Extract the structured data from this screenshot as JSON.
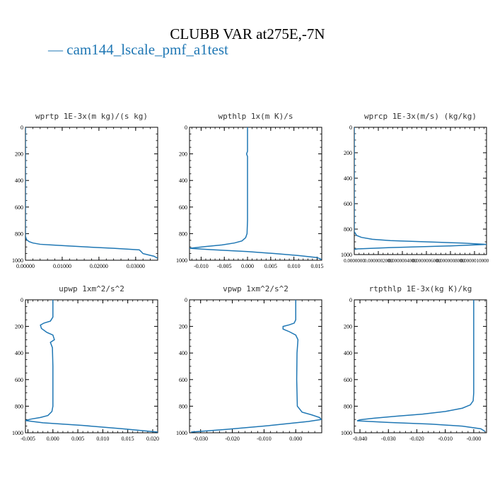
{
  "title": "CLUBB VAR at275E,-7N",
  "legend_label": "cam144_lscale_pmf_a1test",
  "colors": {
    "line": "#1f77b4",
    "axis": "#000000"
  },
  "chart_data": [
    {
      "type": "line",
      "title": "wprtp  1E-3x(m kg)/(s kg)",
      "xlim": [
        0.0,
        0.036
      ],
      "ylim": [
        1000,
        0
      ],
      "xticks": [
        0.0,
        0.01,
        0.02,
        0.03
      ],
      "xtick_labels": [
        "0.00000",
        "0.01000",
        "0.02000",
        "0.03000"
      ],
      "yticks": [
        0,
        200,
        400,
        600,
        800,
        1000
      ],
      "ytick_labels": [
        "0",
        "200",
        "400",
        "600",
        "800",
        "1000"
      ],
      "series": [
        {
          "name": "cam144_lscale_pmf_a1test",
          "x": [
            0.0,
            0.0,
            0.0,
            0.0003,
            0.001,
            0.002,
            0.004,
            0.007,
            0.012,
            0.018,
            0.024,
            0.028,
            0.031,
            0.0315,
            0.032,
            0.0335,
            0.035,
            0.036
          ],
          "y": [
            0,
            780,
            820,
            845,
            860,
            870,
            880,
            885,
            893,
            902,
            910,
            917,
            922,
            935,
            950,
            960,
            970,
            985
          ]
        }
      ]
    },
    {
      "type": "line",
      "title": "wpthlp  1x(m K)/s",
      "xlim": [
        -0.0125,
        0.016
      ],
      "ylim": [
        1000,
        0
      ],
      "xticks": [
        -0.01,
        -0.005,
        0.0,
        0.005,
        0.01,
        0.015
      ],
      "xtick_labels": [
        "-0.010",
        "-0.005",
        "0.000",
        "0.005",
        "0.010",
        "0.015"
      ],
      "yticks": [
        0,
        200,
        400,
        600,
        800,
        1000
      ],
      "ytick_labels": [
        "0",
        "200",
        "400",
        "600",
        "800",
        "1000"
      ],
      "series": [
        {
          "name": "cam144_lscale_pmf_a1test",
          "x": [
            0.0,
            0.0,
            -0.0002,
            0.0,
            0.0,
            0.0,
            -0.0001,
            -0.0004,
            -0.0012,
            -0.0028,
            -0.0055,
            -0.009,
            -0.0125,
            -0.008,
            0.0,
            0.006,
            0.011,
            0.015,
            0.016
          ],
          "y": [
            0,
            180,
            200,
            220,
            400,
            700,
            800,
            830,
            855,
            870,
            885,
            897,
            910,
            920,
            935,
            950,
            965,
            980,
            995
          ]
        }
      ]
    },
    {
      "type": "line",
      "title": "wprcp  1E-3x(m/s) (kg/kg)",
      "xlim": [
        0.0,
        1.1e-06
      ],
      "ylim": [
        1000,
        0
      ],
      "xticks": [
        0.0,
        2e-07,
        4e-07,
        6e-07,
        8e-07,
        1e-06
      ],
      "xtick_labels": [
        "0.0000000",
        "0.0000002000",
        "0.0000004000",
        "0.0000006000",
        "0.0000008000",
        "0.0000010000"
      ],
      "yticks": [
        0,
        200,
        400,
        600,
        800,
        1000
      ],
      "ytick_labels": [
        "0",
        "200",
        "400",
        "600",
        "800",
        "1000"
      ],
      "series": [
        {
          "name": "cam144_lscale_pmf_a1test",
          "x": [
            0.0,
            0.0,
            0.0,
            2e-08,
            6e-08,
            1.5e-07,
            3e-07,
            6e-07,
            9e-07,
            1.1e-06,
            8e-07,
            3e-07,
            3e-08,
            0.0
          ],
          "y": [
            0,
            750,
            820,
            850,
            865,
            880,
            890,
            900,
            910,
            920,
            932,
            945,
            955,
            960
          ]
        }
      ]
    },
    {
      "type": "line",
      "title": "upwp  1xm^2/s^2",
      "xlim": [
        -0.0055,
        0.021
      ],
      "ylim": [
        1000,
        0
      ],
      "xticks": [
        -0.005,
        0.0,
        0.005,
        0.01,
        0.015,
        0.02
      ],
      "xtick_labels": [
        "-0.005",
        "0.000",
        "0.005",
        "0.010",
        "0.015",
        "0.020"
      ],
      "yticks": [
        0,
        200,
        400,
        600,
        800,
        1000
      ],
      "ytick_labels": [
        "0",
        "200",
        "400",
        "600",
        "800",
        "1000"
      ],
      "series": [
        {
          "name": "cam144_lscale_pmf_a1test",
          "x": [
            0.0,
            0.0,
            -0.0005,
            -0.0018,
            -0.0025,
            -0.0023,
            -0.0012,
            0.0,
            0.0003,
            -0.0005,
            -0.0001,
            0.0,
            0.0,
            -0.0002,
            -0.001,
            -0.0025,
            -0.0045,
            -0.0055,
            -0.002,
            0.006,
            0.014,
            0.021
          ],
          "y": [
            0,
            130,
            160,
            175,
            190,
            215,
            245,
            265,
            300,
            320,
            360,
            500,
            800,
            840,
            870,
            885,
            898,
            908,
            925,
            945,
            970,
            995
          ]
        }
      ]
    },
    {
      "type": "line",
      "title": "vpwp  1xm^2/s^2",
      "xlim": [
        -0.0335,
        0.0082
      ],
      "ylim": [
        1000,
        0
      ],
      "xticks": [
        -0.03,
        -0.02,
        -0.01,
        0.0
      ],
      "xtick_labels": [
        "-0.030",
        "-0.020",
        "-0.010",
        "0.000"
      ],
      "yticks": [
        0,
        200,
        400,
        600,
        800,
        1000
      ],
      "ytick_labels": [
        "0",
        "200",
        "400",
        "600",
        "800",
        "1000"
      ],
      "series": [
        {
          "name": "cam144_lscale_pmf_a1test",
          "x": [
            0.0,
            0.0,
            -0.0005,
            -0.002,
            -0.004,
            -0.004,
            -0.002,
            0.0,
            0.0007,
            0.0004,
            0.0003,
            0.0005,
            0.002,
            0.005,
            0.0075,
            0.008,
            0.004,
            -0.008,
            -0.022,
            -0.033
          ],
          "y": [
            0,
            150,
            175,
            188,
            200,
            220,
            240,
            265,
            300,
            400,
            600,
            800,
            845,
            865,
            885,
            900,
            915,
            945,
            975,
            995
          ]
        }
      ]
    },
    {
      "type": "line",
      "title": "rtpthlp  1E-3x(kg K)/kg",
      "xlim": [
        -0.042,
        0.0045
      ],
      "ylim": [
        1000,
        0
      ],
      "xticks": [
        -0.04,
        -0.03,
        -0.02,
        -0.01,
        0.0
      ],
      "xtick_labels": [
        "-0.040",
        "-0.030",
        "-0.020",
        "-0.010",
        "-0.000"
      ],
      "yticks": [
        0,
        200,
        400,
        600,
        800,
        1000
      ],
      "ytick_labels": [
        "0",
        "200",
        "400",
        "600",
        "800",
        "1000"
      ],
      "series": [
        {
          "name": "cam144_lscale_pmf_a1test",
          "x": [
            0.0,
            0.0,
            -0.0002,
            -0.0012,
            -0.004,
            -0.01,
            -0.018,
            -0.027,
            -0.035,
            -0.04,
            -0.041,
            -0.03,
            -0.015,
            -0.004,
            0.0025,
            0.004
          ],
          "y": [
            0,
            700,
            760,
            790,
            815,
            840,
            860,
            875,
            890,
            902,
            910,
            922,
            935,
            950,
            970,
            990
          ]
        }
      ]
    }
  ]
}
